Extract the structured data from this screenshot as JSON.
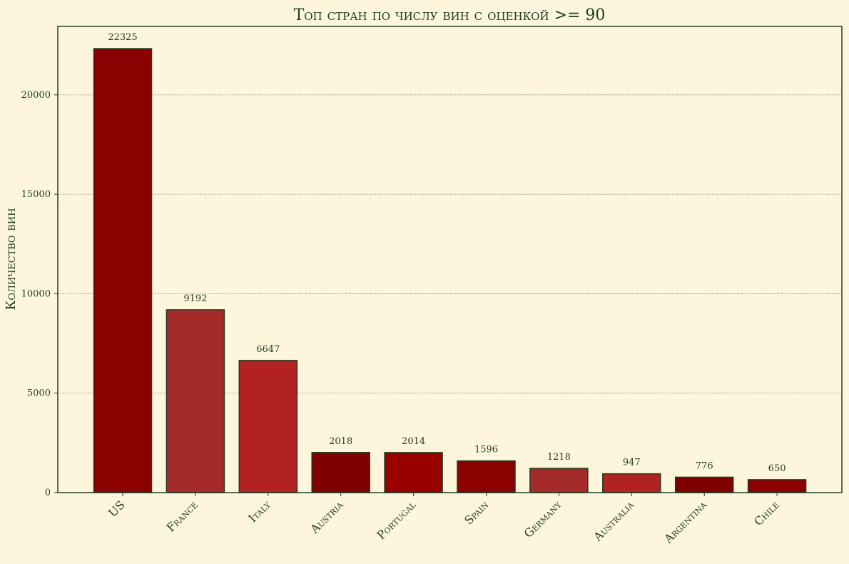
{
  "chart_data": {
    "type": "bar",
    "title": "Топ стран по числу вин с оценкой >= 90",
    "xlabel": "",
    "ylabel": "Количество вин",
    "categories": [
      "US",
      "France",
      "Italy",
      "Austria",
      "Portugal",
      "Spain",
      "Germany",
      "Australia",
      "Argentina",
      "Chile"
    ],
    "values": [
      22325,
      9192,
      6647,
      2018,
      2014,
      1596,
      1218,
      947,
      776,
      650
    ],
    "bar_colors": [
      "#8b0000",
      "#a52a2a",
      "#b22222",
      "#800000",
      "#990000",
      "#8b0000",
      "#a52a2a",
      "#b22222",
      "#800000",
      "#8b0000"
    ],
    "ylim": [
      0,
      23441
    ],
    "yticks": [
      0,
      5000,
      10000,
      15000,
      20000
    ],
    "grid": "y dotted",
    "legend": "none",
    "colors": {
      "background": "#fdf6dc",
      "axis": "#1f3d24",
      "text": "#1f3d24",
      "grid": "#5a6b4f",
      "bar_edge": "#1f3d24"
    }
  }
}
